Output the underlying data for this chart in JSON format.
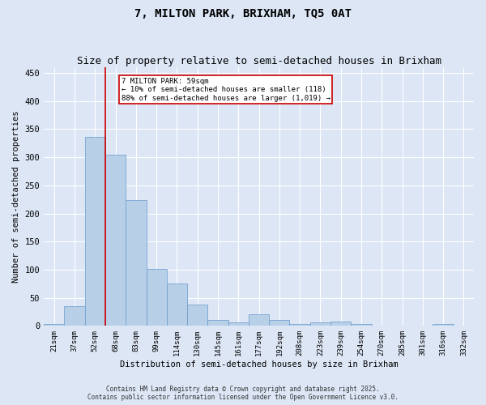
{
  "title": "7, MILTON PARK, BRIXHAM, TQ5 0AT",
  "subtitle": "Size of property relative to semi-detached houses in Brixham",
  "xlabel": "Distribution of semi-detached houses by size in Brixham",
  "ylabel": "Number of semi-detached properties",
  "categories": [
    "21sqm",
    "37sqm",
    "52sqm",
    "68sqm",
    "83sqm",
    "99sqm",
    "114sqm",
    "130sqm",
    "145sqm",
    "161sqm",
    "177sqm",
    "192sqm",
    "208sqm",
    "223sqm",
    "239sqm",
    "254sqm",
    "270sqm",
    "285sqm",
    "301sqm",
    "316sqm",
    "332sqm"
  ],
  "values": [
    4,
    35,
    337,
    305,
    224,
    101,
    75,
    38,
    10,
    6,
    21,
    10,
    3,
    6,
    8,
    4,
    1,
    0,
    0,
    3,
    1
  ],
  "bar_color": "#b8cfe8",
  "bar_edge_color": "#6699cc",
  "vline_x_index": 2,
  "vline_color": "#cc0000",
  "annotation_title": "7 MILTON PARK: 59sqm",
  "annotation_line1": "← 10% of semi-detached houses are smaller (118)",
  "annotation_line2": "88% of semi-detached houses are larger (1,019) →",
  "annotation_box_color": "#cc0000",
  "footer1": "Contains HM Land Registry data © Crown copyright and database right 2025.",
  "footer2": "Contains public sector information licensed under the Open Government Licence v3.0.",
  "bg_color": "#dce6f5",
  "plot_bg_color": "#dce6f5",
  "grid_color": "#ffffff",
  "yticks": [
    0,
    50,
    100,
    150,
    200,
    250,
    300,
    350,
    400,
    450
  ],
  "ylim": [
    0,
    460
  ],
  "title_fontsize": 10,
  "subtitle_fontsize": 9
}
